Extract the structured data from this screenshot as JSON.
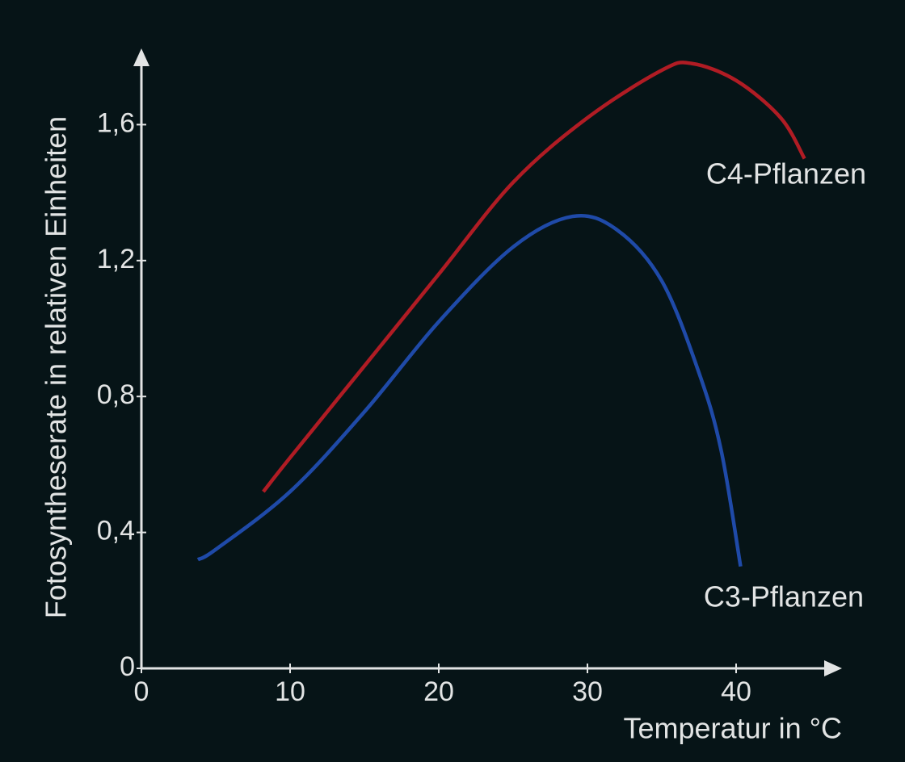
{
  "chart_data": {
    "type": "line",
    "xlabel": "Temperatur in °C",
    "ylabel": "Fotosyntheserate in relativen Einheiten",
    "xlim": [
      0,
      47
    ],
    "ylim": [
      0,
      1.82
    ],
    "xticks": [
      0,
      10,
      20,
      30,
      40
    ],
    "yticks": [
      0,
      {
        "value": 0.4,
        "label": "0,4"
      },
      {
        "value": 0.8,
        "label": "0,8"
      },
      {
        "value": 1.2,
        "label": "1,2"
      },
      {
        "value": 1.6,
        "label": "1,6"
      }
    ],
    "series": [
      {
        "name": "C4-Pflanzen",
        "color": "#b01c24",
        "x": [
          8.2,
          10,
          15,
          20,
          25,
          30,
          35,
          37,
          40,
          43,
          44.6
        ],
        "values": [
          0.52,
          0.62,
          0.89,
          1.16,
          1.43,
          1.62,
          1.76,
          1.78,
          1.73,
          1.62,
          1.5
        ]
      },
      {
        "name": "C3-Pflanzen",
        "color": "#1f4aa8",
        "x": [
          3.8,
          5,
          10,
          15,
          20,
          25,
          29,
          32,
          35,
          37.5,
          39,
          40.3
        ],
        "values": [
          0.32,
          0.35,
          0.52,
          0.755,
          1.02,
          1.24,
          1.33,
          1.29,
          1.14,
          0.87,
          0.64,
          0.3
        ]
      }
    ]
  }
}
